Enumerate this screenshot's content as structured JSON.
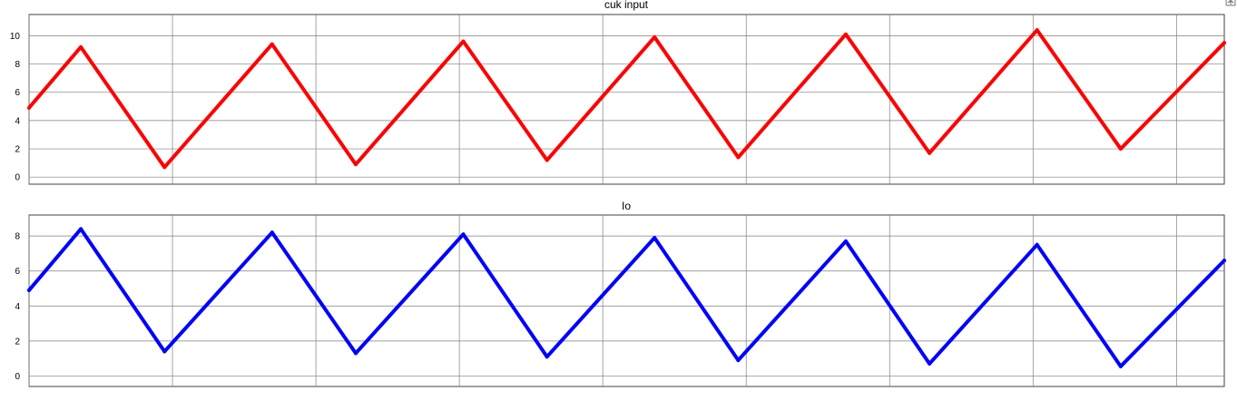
{
  "chart_data": [
    {
      "type": "line",
      "title": "cuk input",
      "xlim": [
        0,
        3
      ],
      "ylim": [
        -0.5,
        11.5
      ],
      "yticks": [
        0,
        2,
        4,
        6,
        8,
        10
      ],
      "ytick_labels": [
        "0",
        "2",
        "4",
        "6",
        "8",
        "10"
      ],
      "xgrid": [
        0,
        0.36,
        0.72,
        1.08,
        1.44,
        1.8,
        2.16,
        2.52,
        2.88
      ],
      "grid": true,
      "series": [
        {
          "color": "#ff0000",
          "points": [
            [
              0,
              4.9
            ],
            [
              0.13,
              9.2
            ],
            [
              0.34,
              0.7
            ],
            [
              0.61,
              9.4
            ],
            [
              0.82,
              0.9
            ],
            [
              1.09,
              9.6
            ],
            [
              1.3,
              1.2
            ],
            [
              1.57,
              9.9
            ],
            [
              1.78,
              1.4
            ],
            [
              2.05,
              10.1
            ],
            [
              2.26,
              1.7
            ],
            [
              2.53,
              10.4
            ],
            [
              2.74,
              2.0
            ],
            [
              3.0,
              9.5
            ]
          ]
        }
      ]
    },
    {
      "type": "line",
      "title": "Io",
      "xlim": [
        0,
        3
      ],
      "ylim": [
        -0.6,
        9.2
      ],
      "yticks": [
        0,
        2,
        4,
        6,
        8
      ],
      "ytick_labels": [
        "0",
        "2",
        "4",
        "6",
        "8"
      ],
      "xgrid": [
        0,
        0.36,
        0.72,
        1.08,
        1.44,
        1.8,
        2.16,
        2.52,
        2.88
      ],
      "grid": true,
      "series": [
        {
          "color": "#0000ff",
          "points": [
            [
              0,
              4.9
            ],
            [
              0.13,
              8.4
            ],
            [
              0.34,
              1.4
            ],
            [
              0.61,
              8.2
            ],
            [
              0.82,
              1.3
            ],
            [
              1.09,
              8.1
            ],
            [
              1.3,
              1.1
            ],
            [
              1.57,
              7.9
            ],
            [
              1.78,
              0.9
            ],
            [
              2.05,
              7.7
            ],
            [
              2.26,
              0.7
            ],
            [
              2.53,
              7.5
            ],
            [
              2.74,
              0.55
            ],
            [
              3.0,
              6.6
            ]
          ]
        }
      ]
    }
  ]
}
